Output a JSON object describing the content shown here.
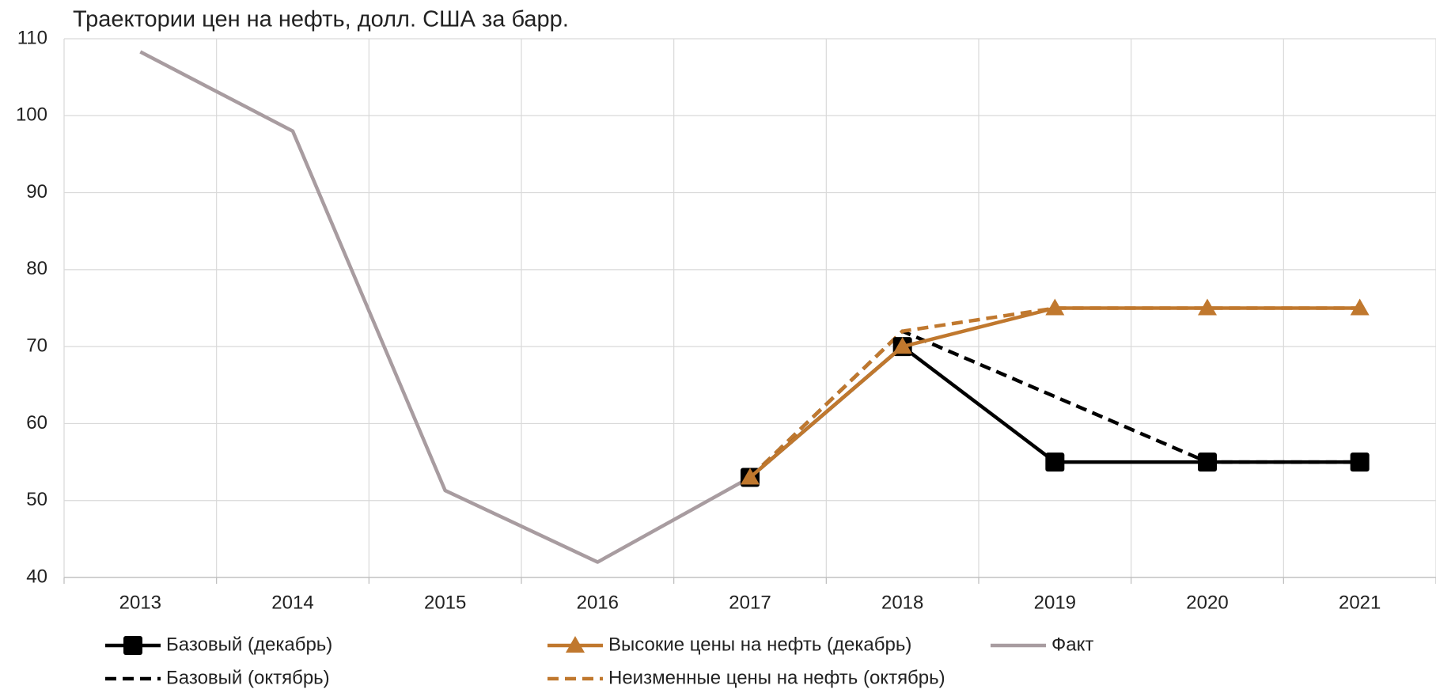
{
  "chart_data": {
    "type": "line",
    "title": "Траектории цен на нефть, долл. США за барр.",
    "categories": [
      "2013",
      "2014",
      "2015",
      "2016",
      "2017",
      "2018",
      "2019",
      "2020",
      "2021"
    ],
    "ylim": [
      40,
      110
    ],
    "yticks": [
      40,
      50,
      60,
      70,
      80,
      90,
      100,
      110
    ],
    "grid": true,
    "series": [
      {
        "name": "Базовый (декабрь)",
        "color": "#000000",
        "dash": false,
        "marker": "square",
        "values": [
          null,
          null,
          null,
          null,
          53,
          70,
          55,
          55,
          55
        ]
      },
      {
        "name": "Высокие цены на нефть (декабрь)",
        "color": "#c0782e",
        "dash": false,
        "marker": "triangle",
        "values": [
          null,
          null,
          null,
          null,
          53,
          70,
          75,
          75,
          75
        ]
      },
      {
        "name": "Факт",
        "color": "#a89ca0",
        "dash": false,
        "marker": "none",
        "values": [
          108.3,
          98,
          51.3,
          42,
          53,
          null,
          null,
          null,
          null
        ]
      },
      {
        "name": "Базовый (октябрь)",
        "color": "#000000",
        "dash": true,
        "marker": "none",
        "values": [
          null,
          null,
          null,
          null,
          53,
          72,
          63.5,
          55,
          55
        ]
      },
      {
        "name": "Неизменные цены на нефть (октябрь)",
        "color": "#c0782e",
        "dash": true,
        "marker": "none",
        "values": [
          null,
          null,
          null,
          null,
          53,
          72,
          75,
          75,
          75
        ]
      }
    ]
  }
}
